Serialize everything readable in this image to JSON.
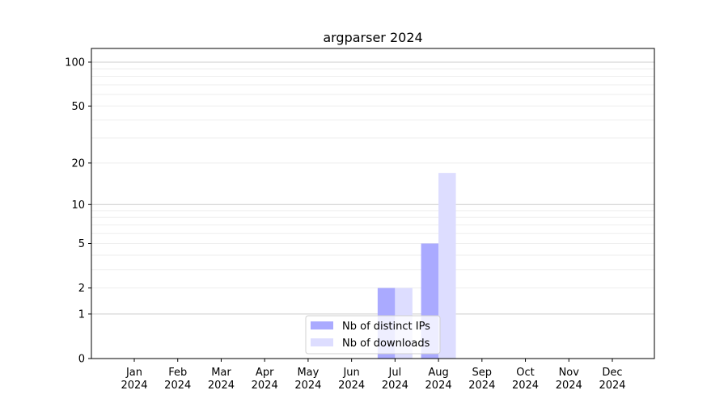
{
  "chart_data": {
    "type": "bar",
    "title": "argparser 2024",
    "xlabel": "",
    "ylabel": "",
    "yscale": "log(1+y)",
    "ylim": [
      0,
      124
    ],
    "yticks": [
      0,
      1,
      2,
      5,
      10,
      20,
      50,
      100
    ],
    "grid": true,
    "legend_placement": "bottom-center",
    "categories": [
      "Jan\n2024",
      "Feb\n2024",
      "Mar\n2024",
      "Apr\n2024",
      "May\n2024",
      "Jun\n2024",
      "Jul\n2024",
      "Aug\n2024",
      "Sep\n2024",
      "Oct\n2024",
      "Nov\n2024",
      "Dec\n2024"
    ],
    "series": [
      {
        "name": "Nb of distinct IPs",
        "color": "#aaaaff",
        "values": [
          0,
          0,
          0,
          0,
          0,
          0,
          2,
          5,
          0,
          0,
          0,
          0
        ]
      },
      {
        "name": "Nb of downloads",
        "color": "#ddddff",
        "values": [
          0,
          0,
          0,
          0,
          0,
          0,
          2,
          17,
          0,
          0,
          0,
          0
        ]
      }
    ]
  }
}
